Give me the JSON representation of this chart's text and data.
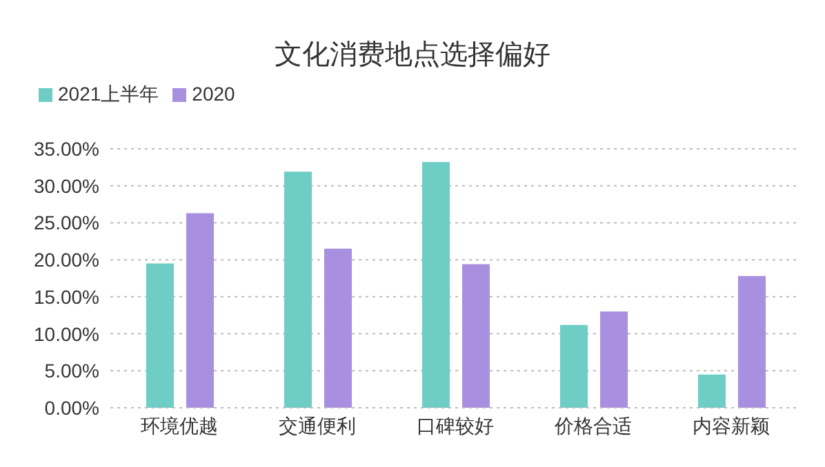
{
  "chart_data": {
    "type": "bar",
    "title": "文化消费地点选择偏好",
    "categories": [
      "环境优越",
      "交通便利",
      "口碑较好",
      "价格合适",
      "内容新颖"
    ],
    "series": [
      {
        "name": "2021上半年",
        "color": "#6ecdc5",
        "values": [
          19.5,
          31.9,
          33.2,
          11.2,
          4.5
        ]
      },
      {
        "name": "2020",
        "color": "#a98fe0",
        "values": [
          26.3,
          21.5,
          19.4,
          13.0,
          17.8
        ]
      }
    ],
    "ylim": [
      0,
      35
    ],
    "yticks": [
      {
        "value": 0,
        "label": "0.00%"
      },
      {
        "value": 5,
        "label": "5.00%"
      },
      {
        "value": 10,
        "label": "10.00%"
      },
      {
        "value": 15,
        "label": "15.00%"
      },
      {
        "value": 20,
        "label": "20.00%"
      },
      {
        "value": 25,
        "label": "25.00%"
      },
      {
        "value": 30,
        "label": "30.00%"
      },
      {
        "value": 35,
        "label": "35.00%"
      }
    ],
    "grid": "y",
    "legend": "top left"
  }
}
